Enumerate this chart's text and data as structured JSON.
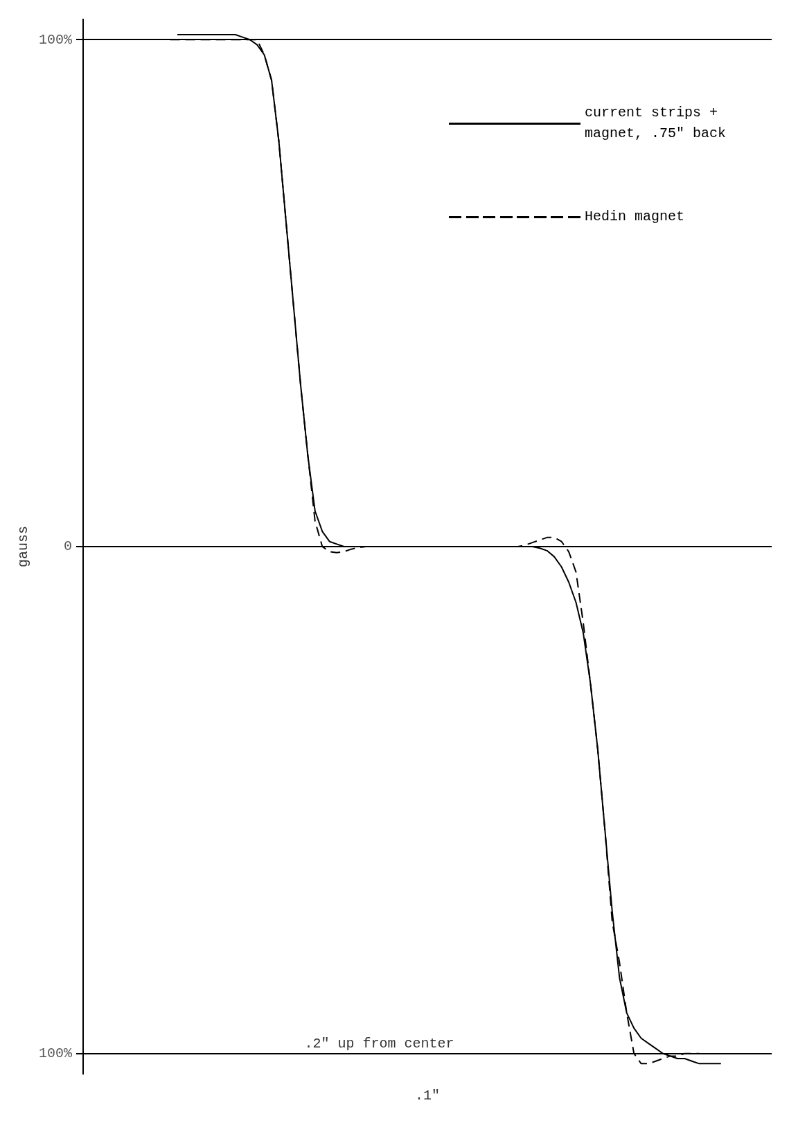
{
  "chart_data": {
    "type": "line",
    "ylabel": "gauss",
    "xlabel": ".1\"",
    "annotations": [
      ".2\" up from center"
    ],
    "categories": [
      null,
      null,
      null,
      null,
      null,
      null,
      null,
      null,
      null,
      null,
      null,
      null,
      null,
      null,
      null,
      null,
      null,
      null,
      null,
      null,
      null,
      null,
      null,
      null,
      null,
      null,
      null,
      null,
      null,
      null,
      null,
      null,
      null,
      null,
      null,
      null,
      null,
      null,
      null,
      null,
      null,
      null,
      null,
      null,
      null,
      null,
      null,
      null,
      null,
      null,
      null,
      null,
      null,
      null,
      null,
      null,
      null,
      null,
      null,
      null,
      null,
      null,
      null,
      null,
      null,
      null,
      null,
      null,
      null,
      null,
      null,
      null,
      null,
      null,
      null,
      null,
      null,
      null,
      null,
      null,
      null,
      null,
      null,
      null,
      null,
      null,
      null,
      null,
      null,
      null,
      null,
      null,
      null,
      null,
      null,
      null
    ],
    "series": [
      {
        "name": "current strips + magnet, .75\" back",
        "color": "#000000",
        "line_style": "solid",
        "values": [
          null,
          null,
          null,
          null,
          null,
          null,
          null,
          null,
          null,
          null,
          null,
          null,
          null,
          101,
          101,
          101,
          101,
          101,
          101,
          101,
          101,
          101,
          100.5,
          100,
          99,
          97,
          92,
          80,
          64,
          48,
          32,
          18,
          7,
          3,
          1,
          0.5,
          0,
          0,
          0,
          0,
          0,
          0,
          0,
          0,
          0,
          0,
          0,
          0,
          0,
          0,
          0,
          0,
          0,
          0,
          0,
          0,
          0,
          0,
          0,
          0,
          0,
          0,
          0,
          -0.3,
          -0.8,
          -2,
          -4,
          -7,
          -11,
          -17,
          -27,
          -40,
          -56,
          -72,
          -85,
          -92,
          -95,
          -97,
          -98,
          -99,
          -100,
          -100.5,
          -101,
          -101,
          -101.5,
          -102,
          -102,
          -102,
          -102,
          null,
          null,
          null,
          null,
          null,
          null,
          null
        ]
      },
      {
        "name": "Hedin magnet",
        "color": "#000000",
        "line_style": "dashed",
        "values": [
          null,
          null,
          null,
          null,
          null,
          null,
          null,
          null,
          null,
          null,
          null,
          null,
          100,
          100,
          100,
          100,
          100,
          100,
          100,
          100,
          100,
          100,
          100,
          100,
          100,
          97,
          92,
          80,
          64,
          48,
          32,
          18,
          5,
          0,
          -1,
          -1.2,
          -1,
          -0.5,
          -0.2,
          0,
          0,
          0,
          0,
          0,
          0,
          0,
          0,
          0,
          0,
          0,
          0,
          0,
          0,
          0,
          0,
          0,
          0,
          0,
          0,
          0,
          0,
          0.3,
          0.8,
          1.3,
          1.8,
          1.8,
          1,
          -1,
          -5,
          -15,
          -27,
          -40,
          -56,
          -74,
          -82,
          -92,
          -100,
          -102,
          -102,
          -101.5,
          -101,
          -100.5,
          -100.5,
          -100,
          -100,
          -100,
          null,
          null,
          null,
          null,
          null,
          null,
          null,
          null,
          null,
          null
        ]
      }
    ],
    "ylim": [
      -104,
      104
    ],
    "yticks": [
      {
        "value": -100,
        "label": "100%"
      },
      0,
      {
        "value": 100,
        "label": "100%"
      }
    ],
    "grid": "y",
    "legend": "top right",
    "marker": "none"
  }
}
